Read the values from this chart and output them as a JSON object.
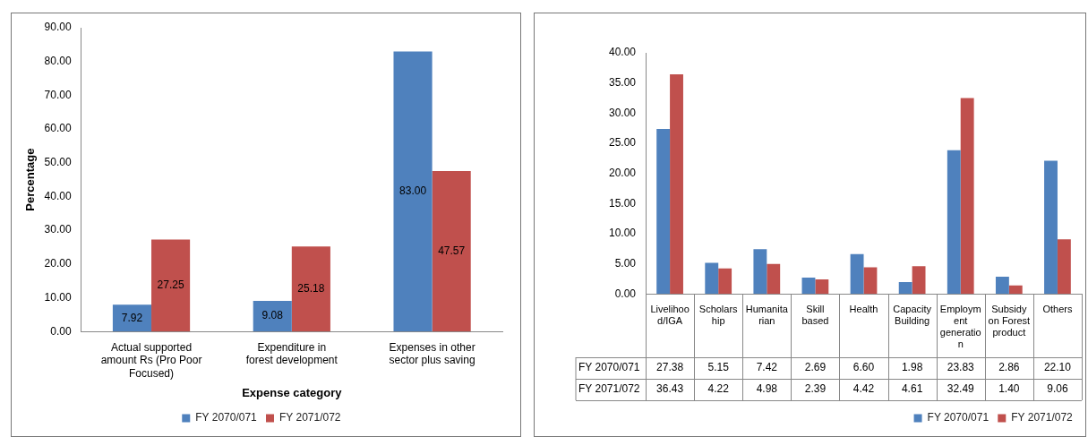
{
  "chart_data": [
    {
      "type": "bar",
      "xlabel": "Expense category",
      "ylabel": "Percentage",
      "categories": [
        "Actual supported amount Rs (Pro Poor Focused)",
        "Expenditure in forest development",
        "Expenses in other sector plus saving"
      ],
      "series": [
        {
          "name": "FY 2070/071",
          "color": "#4f81bd",
          "values": [
            7.92,
            9.08,
            83.0
          ],
          "value_labels": [
            "7.92",
            "9.08",
            "83.00"
          ]
        },
        {
          "name": "FY 2071/072",
          "color": "#c0504d",
          "values": [
            27.25,
            25.18,
            47.57
          ],
          "value_labels": [
            "27.25",
            "25.18",
            "47.57"
          ]
        }
      ],
      "ylim": [
        0,
        90
      ],
      "yticks": [
        {
          "value": 0,
          "label": "0.00"
        },
        {
          "value": 10,
          "label": "10.00"
        },
        {
          "value": 20,
          "label": "20.00"
        },
        {
          "value": 30,
          "label": "30.00"
        },
        {
          "value": 40,
          "label": "40.00"
        },
        {
          "value": 50,
          "label": "50.00"
        },
        {
          "value": 60,
          "label": "60.00"
        },
        {
          "value": 70,
          "label": "70.00"
        },
        {
          "value": 80,
          "label": "80.00"
        },
        {
          "value": 90,
          "label": "90.00"
        }
      ],
      "legend": "bottom",
      "grid": false
    },
    {
      "type": "bar",
      "categories": [
        "Livelihood/IGA",
        "Scholarship",
        "Humanitarian",
        "Skill based",
        "Health",
        "Capacity Building",
        "Employment generation",
        "Subsidy on Forest product",
        "Others"
      ],
      "series": [
        {
          "name": "FY 2070/071",
          "color": "#4f81bd",
          "values": [
            27.38,
            5.15,
            7.42,
            2.69,
            6.6,
            1.98,
            23.83,
            2.86,
            22.1
          ],
          "value_labels": [
            "27.38",
            "5.15",
            "7.42",
            "2.69",
            "6.60",
            "1.98",
            "23.83",
            "2.86",
            "22.10"
          ]
        },
        {
          "name": "FY 2071/072",
          "color": "#c0504d",
          "values": [
            36.43,
            4.22,
            4.98,
            2.39,
            4.42,
            4.61,
            32.49,
            1.4,
            9.06
          ],
          "value_labels": [
            "36.43",
            "4.22",
            "4.98",
            "2.39",
            "4.42",
            "4.61",
            "32.49",
            "1.40",
            "9.06"
          ]
        }
      ],
      "ylim": [
        0,
        40
      ],
      "yticks": [
        {
          "value": 0,
          "label": "0.00"
        },
        {
          "value": 5,
          "label": "5.00"
        },
        {
          "value": 10,
          "label": "10.00"
        },
        {
          "value": 15,
          "label": "15.00"
        },
        {
          "value": 20,
          "label": "20.00"
        },
        {
          "value": 25,
          "label": "25.00"
        },
        {
          "value": 30,
          "label": "30.00"
        },
        {
          "value": 35,
          "label": "35.00"
        },
        {
          "value": 40,
          "label": "40.00"
        }
      ],
      "legend": "bottom right",
      "grid": false
    }
  ]
}
